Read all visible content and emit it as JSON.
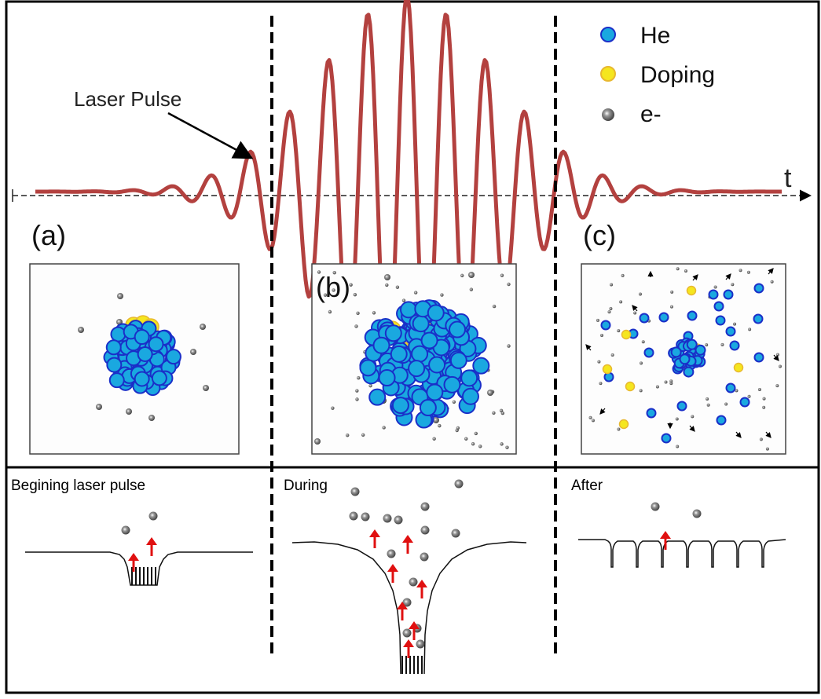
{
  "top_panel": {
    "annotation": "Laser Pulse",
    "time_axis_label": "t",
    "stage_labels": [
      "(a)",
      "(b)",
      "(c)"
    ]
  },
  "legend": {
    "items": [
      {
        "label": "He",
        "color": "#1aa8e0",
        "icon": "blue-sphere-icon"
      },
      {
        "label": "Doping",
        "color": "#f5e61e",
        "icon": "yellow-sphere-icon"
      },
      {
        "label": "e-",
        "color": "#555555",
        "icon": "electron-icon"
      }
    ]
  },
  "bottom_panel": {
    "stages": [
      {
        "title": "Begining laser pulse"
      },
      {
        "title": "During"
      },
      {
        "title": "After"
      }
    ]
  },
  "colors": {
    "pulse": "#b3413f",
    "he_fill": "#1aa8e0",
    "he_stroke": "#1a2fc8",
    "doping": "#f5e61e",
    "electron": "#555555",
    "arrow": "#e01010"
  }
}
